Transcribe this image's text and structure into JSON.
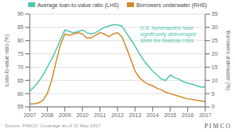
{
  "chart_data": {
    "type": "line",
    "x": [
      2007.0,
      2007.25,
      2007.5,
      2007.75,
      2008.0,
      2008.25,
      2008.5,
      2008.75,
      2009.0,
      2009.25,
      2009.5,
      2009.75,
      2010.0,
      2010.25,
      2010.5,
      2010.75,
      2011.0,
      2011.25,
      2011.5,
      2011.75,
      2012.0,
      2012.25,
      2012.5,
      2012.75,
      2013.0,
      2013.25,
      2013.5,
      2013.75,
      2014.0,
      2014.25,
      2014.5,
      2014.75,
      2015.0,
      2015.25,
      2015.5,
      2015.75,
      2016.0,
      2016.25,
      2016.5,
      2016.75,
      2017.0
    ],
    "xlim": [
      2007,
      2017
    ],
    "xticks": [
      2007,
      2008,
      2009,
      2010,
      2011,
      2012,
      2013,
      2014,
      2015,
      2016,
      2017
    ],
    "ylim": [
      55,
      90
    ],
    "yticks": [
      55,
      60,
      65,
      70,
      75,
      80,
      85,
      90
    ],
    "y2lim": [
      0,
      35
    ],
    "y2ticks": [
      0,
      5,
      10,
      15,
      20,
      25,
      30,
      35
    ],
    "ylabel": "Loan-to-value ratio (%)",
    "y2label": "Borrowers underwater (%)",
    "grid": true,
    "legend": "top",
    "annotations": [
      {
        "text": "U.S. homeowners have\nsignificantly deleveraged\nsince the financial crisis",
        "color": "#4ec5b0"
      },
      {
        "text": "Source: PIMCO. Coverage as of 31 May 2017"
      },
      {
        "text": "P I M C O"
      }
    ],
    "series": [
      {
        "name": "Average loan-to-value ratio (LHS)",
        "color": "#4ec5b0",
        "values": [
          61.0,
          62.5,
          64.5,
          67.0,
          70.0,
          73.0,
          76.5,
          80.5,
          84.0,
          83.5,
          83.0,
          83.5,
          84.0,
          83.0,
          82.5,
          83.0,
          84.0,
          85.0,
          85.5,
          86.0,
          86.0,
          85.5,
          83.0,
          80.5,
          78.0,
          75.0,
          72.5,
          70.5,
          68.5,
          67.0,
          65.5,
          65.0,
          67.0,
          66.0,
          65.5,
          64.5,
          64.0,
          63.5,
          63.0,
          62.5,
          62.5
        ]
      },
      {
        "name": "Borrowers underwater (RHS)",
        "color": "#d4882a",
        "axis": "y2",
        "values": [
          1.0,
          1.2,
          1.5,
          2.5,
          5.0,
          10.0,
          17.0,
          23.5,
          27.5,
          27.0,
          27.5,
          28.0,
          27.5,
          26.0,
          26.0,
          27.0,
          28.0,
          27.5,
          26.5,
          27.5,
          28.0,
          26.5,
          22.5,
          18.0,
          13.5,
          11.0,
          9.5,
          8.5,
          8.0,
          7.0,
          6.5,
          5.5,
          5.0,
          4.5,
          4.0,
          3.5,
          3.0,
          2.8,
          2.5,
          2.2,
          2.0
        ]
      }
    ]
  }
}
